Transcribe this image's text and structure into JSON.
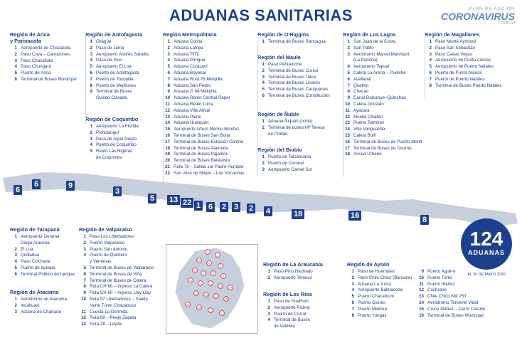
{
  "title": "ADUANAS SANITARIAS",
  "logo": {
    "small": "PLAN DE ACCIÓN",
    "big": "CORONAVIRUS",
    "sub": "COVID-19"
  },
  "badge": {
    "count": "124",
    "label": "ADUANAS",
    "date": "AL 20 DE MAYO 2020"
  },
  "colors": {
    "primary": "#1d3f8f",
    "map": "#c7cedc"
  },
  "regions": {
    "arica": {
      "title": "Región de Arica\ny Parinacota",
      "items": [
        "Aeropuerto de Chacalluta",
        "Paso Cuya – Camarones",
        "Paso Chacalluta",
        "Paso Chungará",
        "Puerto de Arica",
        "Terminal de Buses Municipal"
      ]
    },
    "antofagasta": {
      "title": "Región de Antofagasta",
      "items": [
        "Ollagüe",
        "Paso de Jama",
        "Aeropuerto Andrés Sabella",
        "Paso de Sico",
        "Aeropuerto El Loa",
        "Puerto de Antofagasta",
        "Puerto de Tocopilla",
        "Puerto de Mejillones",
        "Terminal de Buses\nOviedo Clavado"
      ]
    },
    "coquimbo": {
      "title": "Región de Coquimbo",
      "items": [
        "Aeropuerto La Florida",
        "Pichidangui",
        "Paso de Agua Negra",
        "Puerto de Coquimbo",
        "Retén Las Higeras\nde Coquimbo"
      ]
    },
    "metropolitana": {
      "title": "Región Metropolitana",
      "items": [
        "Aduana Colina",
        "Aduana Lampa",
        "Aduana TilTil",
        "Aduana Pangue",
        "Aduana Curacaví",
        "Aduana Boyenar",
        "Aduana Ruta 78 Melipilla",
        "Aduana San Pedro",
        "Aduana G 84 Melipilla",
        "Aduana Retén Central Rapel",
        "Aduana Retén Loica",
        "Aduana Villa Alhué",
        "Aduana Paine",
        "Aduana Huelquén",
        "Aeropuerto Arturo Merino Benítez",
        "Terminal de Buses San Borja",
        "Terminal de Buses Estación Central",
        "Terminal de Buses Alameda",
        "Terminal de Buses Pajaritos",
        "Terminal de Buses Bellavista",
        "Ruta 78 – Salida sur Padre Hurtado",
        "San José de Maipo – Las Vizcachas"
      ]
    },
    "ohiggins": {
      "title": "Región de O'Higgins",
      "items": [
        "Terminal de Buses Rancagua"
      ]
    },
    "maule": {
      "title": "Región del Maule",
      "items": [
        "Paso Pehuenche",
        "Terminal de Buses Curicó",
        "Terminal de Buses Talca",
        "Terminal de Buses Linares",
        "Terminal de Buses Cauquenes",
        "Terminal de Buses Constitución"
      ]
    },
    "nuble": {
      "title": "Región de Ñuble",
      "items": [
        "Aduana Ñiquén (norte)",
        "Terminal de buses Mª Teresa\nde Chillán"
      ]
    },
    "biobio": {
      "title": "Región del Biobío",
      "items": [
        "Puerto de Talcahuano",
        "Puerto de Coronel",
        "Aeropuerto Carriel Sur"
      ]
    },
    "loslagos": {
      "title": "Región de Los Lagos",
      "items": [
        "San Juan de la Costa",
        "San Pablo",
        "Aeródromo Marcel Marchant\n(La Paloma)",
        "Aeropuerto Tepual",
        "Caleta La Arena – Puelche",
        "Avellanal",
        "Quellón",
        "Chacao",
        "Canal Dalcahue–Quinchao",
        "Caleta Gonzalo",
        "Ayacara",
        "Muelle Chaitén",
        "Puerto Ramírez",
        "Villa Vanguardia",
        "Caleta Buill",
        "Terminal de Buses de Puerto Montt",
        "Terminal de Buses de Osorno",
        "Ancud Urbano"
      ]
    },
    "magallanes": {
      "title": "Región de Magallanes",
      "items": [
        "Paso Monte Aymond",
        "Paso San Sebastián",
        "Paso Casas Viejas",
        "Aeropuerto de Punta Arenas",
        "Aeropuerto de Puerto Natales",
        "Puerto de Punta Arenas",
        "Puerto de Puerto Natales",
        "Terminal de Buses Puerto Natales"
      ]
    },
    "tarapaca": {
      "title": "Región de Tarapacá",
      "items": [
        "Aeropuerto General\nDiego Aracena",
        "El Loa",
        "Quillahua",
        "Paso Colchane",
        "Puerto de Iquique",
        "Terminal Público de Iquique"
      ]
    },
    "atacama": {
      "title": "Región de Atacama",
      "items": [
        "Aeródromo de Atacama",
        "Incahuasi",
        "Aduana de Chañaral"
      ]
    },
    "valparaiso": {
      "title": "Región de Valparaíso",
      "items": [
        "Paso Los Libertadores",
        "Puerto Valparaíso",
        "Puerto San Antonio",
        "Puerto de Quintero\ny Ventanas",
        "Terminal de Buses de Valparaíso",
        "Terminal de Buses de Viña",
        "Terminal de Buses de Calera",
        "Ruta CH 60 – Ingreso La Calera",
        "Ruta CH 60 – Ingreso Llay Llay",
        "Ruta 57 Libertadores – Salida\nNorte Túnel Chacabuco",
        "Cuesta La Dormida",
        "Ruta 68 – Peaje Zapata",
        "Ruta 78 – Leyda"
      ]
    },
    "araucania": {
      "title": "Región de La Araucanía",
      "items": [
        "Paso Pino Hachado",
        "Aeropuerto Temuco"
      ]
    },
    "losrios": {
      "title": "Región de Los Ríos",
      "items": [
        "Paso de HuaHum",
        "Aeropuerto Pichoy",
        "Puerto de Corral",
        "Terminal de Buses\nde Valdivia"
      ]
    },
    "aysen": {
      "title": "Región de Aysén",
      "items": [
        "Paso de Huemules",
        "Paso Chile Chico (Barcaza)",
        "Aduana La Junta",
        "Aeropuerto Balmaceda",
        "Puerto Chacabuco",
        "Puerto Cisnes",
        "Puerto Melinka",
        "Puerto Yungay"
      ]
    },
    "aysen2": {
      "items": [
        "Puerto Aguirre",
        "Puerto Tortel",
        "Puerto Ibáñez",
        "Cochrane",
        "Chile Chico KM 253",
        "Aeródromo Teniente Vidal",
        "Cruce Ibáñez – Cerro Castillo",
        "Terminal de Buses Municipal"
      ]
    }
  },
  "markers": [
    "6",
    "6",
    "9",
    "3",
    "5",
    "13",
    "22",
    "1",
    "6",
    "2",
    "3",
    "2",
    "4",
    "18",
    "16",
    "8"
  ],
  "inset_numbers": [
    "1",
    "2",
    "3",
    "4",
    "5",
    "6",
    "7",
    "8",
    "9",
    "10",
    "11",
    "12",
    "13",
    "14",
    "15",
    "16",
    "17",
    "18",
    "19",
    "20",
    "21",
    "22"
  ]
}
